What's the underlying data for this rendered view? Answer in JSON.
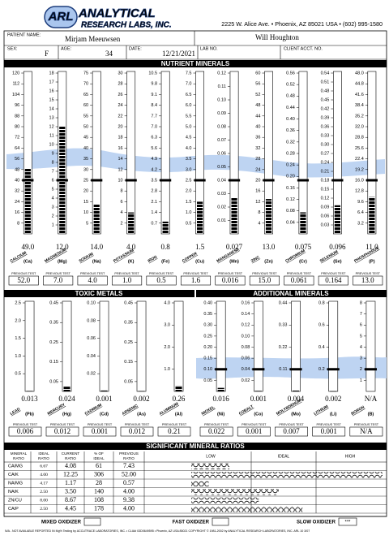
{
  "header": {
    "logo_mark": "ARL",
    "logo_line1": "ANALYTICAL",
    "logo_line2": "RESEARCH LABS, INC.",
    "address": "2225 W. Alice Ave. • Phoenix, AZ 85021 USA • (602) 995-1580"
  },
  "patient": {
    "name_label": "PATIENT NAME:",
    "name": "Mirjam Meeuwsen",
    "doctor": "Will Houghton",
    "sex_label": "SEX:",
    "sex": "F",
    "age_label": "AGE:",
    "age": "34",
    "date_label": "DATE:",
    "date": "12/21/2021",
    "lab_label": "LAB NO.",
    "acct_label": "CLIENT ACCT. NO."
  },
  "previous_test_label": "PREVIOUS TEST",
  "nutrient_minerals": {
    "title": "NUTRIENT MINERALS",
    "minerals": [
      {
        "name": "CALCIUM",
        "symbol": "(Ca)",
        "ylim": [
          0,
          120
        ],
        "ticks": [
          120,
          112,
          104,
          96,
          88,
          80,
          72,
          64,
          56,
          48,
          40,
          32,
          24,
          16,
          8
        ],
        "value": 49,
        "value_label": "49.0",
        "previous": "52.0"
      },
      {
        "name": "MAGNESIUM",
        "symbol": "(Mg)",
        "ylim": [
          0,
          18
        ],
        "ticks": [
          18,
          17,
          16,
          15,
          14,
          13,
          12,
          11,
          10,
          9,
          8,
          7,
          6,
          5,
          4,
          3,
          2,
          1
        ],
        "value": 12,
        "value_label": "12.0",
        "previous": "7.0"
      },
      {
        "name": "SODIUM",
        "symbol": "(Na)",
        "ylim": [
          0,
          75
        ],
        "ticks": [
          75,
          70,
          65,
          60,
          55,
          50,
          45,
          40,
          35,
          30,
          25,
          20,
          15,
          10,
          5
        ],
        "value": 14,
        "value_label": "14.0",
        "previous": "4.0"
      },
      {
        "name": "POTASSIUM",
        "symbol": "(K)",
        "ylim": [
          0,
          30
        ],
        "ticks": [
          30,
          28,
          26,
          24,
          22,
          20,
          18,
          16,
          14,
          12,
          10,
          8,
          6,
          4,
          2
        ],
        "value": 4,
        "value_label": "4.0",
        "previous": "1.0"
      },
      {
        "name": "IRON",
        "symbol": "(Fe)",
        "ylim": [
          0,
          10.5
        ],
        "ticks": [
          10.5,
          9.8,
          9.1,
          8.4,
          7.7,
          {
            "value": 7,
            "label": "7.0"
          },
          6.3,
          5.6,
          4.9,
          4.2,
          3.5,
          2.8,
          2.1,
          1.4,
          0.7
        ],
        "value": 0.8,
        "previous": "0.5"
      },
      {
        "name": "COPPER",
        "symbol": "(Cu)",
        "ylim": [
          0,
          7.5
        ],
        "ticks": [
          7.5,
          {
            "value": 7,
            "label": "7.0"
          },
          6.5,
          {
            "value": 6,
            "label": "6.0"
          },
          5.5,
          {
            "value": 5,
            "label": "5.0"
          },
          4.5,
          {
            "value": 4,
            "label": "4.0"
          },
          3.5,
          {
            "value": 3,
            "label": "3.0"
          },
          2.5,
          {
            "value": 2,
            "label": "2.0"
          },
          1.5,
          {
            "value": 1,
            "label": "1.0"
          },
          0.5
        ],
        "value": 1.5,
        "previous": "1.6"
      },
      {
        "name": "MANGANESE",
        "symbol": "(Mn)",
        "ylim": [
          0,
          0.12
        ],
        "ticks": [
          0.12,
          0.11,
          {
            "value": 0.1,
            "label": "0.10"
          },
          0.09,
          0.08,
          0.07,
          0.06,
          0.05,
          0.04,
          0.03,
          0.02,
          0.01
        ],
        "value": 0.027,
        "previous": "0.016"
      },
      {
        "name": "ZINC",
        "symbol": "(Zn)",
        "ylim": [
          0,
          60
        ],
        "ticks": [
          60,
          56,
          52,
          48,
          44,
          40,
          36,
          32,
          28,
          24,
          20,
          16,
          12,
          8,
          4
        ],
        "value": 13,
        "value_label": "13.0",
        "previous": "15.0"
      },
      {
        "name": "CHROMIUM",
        "symbol": "(Cr)",
        "ylim": [
          0,
          0.56
        ],
        "ticks": [
          0.56,
          0.52,
          0.48,
          0.44,
          {
            "value": 0.4,
            "label": "0.40"
          },
          0.36,
          0.32,
          0.28,
          0.24,
          {
            "value": 0.2,
            "label": "0.20"
          },
          0.16,
          0.12,
          0.08,
          0.04
        ],
        "value": 0.075,
        "previous": "0.061"
      },
      {
        "name": "SELENIUM",
        "symbol": "(Se)",
        "ylim": [
          0,
          0.54
        ],
        "ticks": [
          0.54,
          0.51,
          0.48,
          0.45,
          0.42,
          0.39,
          0.36,
          0.33,
          {
            "value": 0.3,
            "label": "0.30"
          },
          0.27,
          0.24,
          0.21,
          0.18,
          0.15,
          0.12,
          0.09,
          0.06,
          0.03
        ],
        "value": 0.096,
        "previous": "0.164"
      },
      {
        "name": "PHOSPHORUS",
        "symbol": "(P)",
        "ylim": [
          0,
          48
        ],
        "ticks": [
          {
            "value": 48,
            "label": "48.0"
          },
          44.8,
          41.6,
          38.4,
          35.2,
          {
            "value": 32,
            "label": "32.0"
          },
          28.8,
          25.6,
          22.4,
          19.2,
          {
            "value": 16,
            "label": "16.0"
          },
          12.8,
          9.6,
          6.4,
          3.2
        ],
        "value": 11,
        "value_label": "11.0",
        "previous": "13.0"
      }
    ]
  },
  "toxic_metals": {
    "title": "TOXIC METALS",
    "minerals": [
      {
        "name": "LEAD",
        "symbol": "(Pb)",
        "ylim": [
          0,
          2.5
        ],
        "ticks": [
          2.5,
          {
            "value": 2,
            "label": "2.0"
          },
          1.5,
          {
            "value": 1,
            "label": "1.0"
          },
          0.5
        ],
        "value": 0.013,
        "previous": "0.006"
      },
      {
        "name": "MERCURY",
        "symbol": "(Hg)",
        "ylim": [
          0,
          0.45
        ],
        "ticks": [
          0.45,
          0.35,
          0.25,
          0.15,
          0.05
        ],
        "value": 0.024,
        "previous": "0.012"
      },
      {
        "name": "CADMIUM",
        "symbol": "(Cd)",
        "ylim": [
          0,
          0.1
        ],
        "ticks": [
          {
            "value": 0.1,
            "label": "0.10"
          },
          0.08,
          0.06,
          0.04,
          0.02
        ],
        "value": 0.001,
        "previous": "0.001"
      },
      {
        "name": "ARSENIC",
        "symbol": "(As)",
        "ylim": [
          0,
          0.45
        ],
        "ticks": [
          0.45,
          0.35,
          0.25,
          0.15,
          0.05
        ],
        "value": 0.002,
        "previous": "0.012"
      },
      {
        "name": "ALUMINUM",
        "symbol": "(Al)",
        "ylim": [
          0,
          4
        ],
        "ticks": [
          {
            "value": 4,
            "label": "4.0"
          },
          {
            "value": 3,
            "label": "3.0"
          },
          {
            "value": 2,
            "label": "2.0"
          },
          {
            "value": 1,
            "label": "1.0"
          }
        ],
        "value": 0.26,
        "previous": "0.21"
      }
    ]
  },
  "additional_minerals": {
    "title": "ADDITIONAL MINERALS",
    "minerals": [
      {
        "name": "NICKEL",
        "symbol": "(Ni)",
        "ylim": [
          0,
          0.4
        ],
        "ticks": [
          {
            "value": 0.4,
            "label": "0.40"
          },
          0.35,
          {
            "value": 0.3,
            "label": "0.30"
          },
          0.25,
          {
            "value": 0.2,
            "label": "0.20"
          },
          0.15,
          {
            "value": 0.1,
            "label": "0.10"
          },
          0.05
        ],
        "value": 0.016,
        "previous": "0.022"
      },
      {
        "name": "COBALT",
        "symbol": "(Co)",
        "ylim": [
          0,
          0.16
        ],
        "ticks": [
          0.16,
          0.14,
          0.12,
          {
            "value": 0.1,
            "label": "0.10"
          },
          0.08,
          0.06,
          0.04,
          0.02
        ],
        "value": 0.001,
        "previous": "0.001"
      },
      {
        "name": "MOLYBDENUM",
        "symbol": "(Mo)",
        "ylim": [
          0,
          0.44
        ],
        "ticks": [
          0.44,
          0.33,
          0.22,
          0.11
        ],
        "value": 0.004,
        "previous": "0.007"
      },
      {
        "name": "LITHIUM",
        "symbol": "(Li)",
        "ylim": [
          0,
          0.8
        ],
        "ticks": [
          0.8,
          0.6,
          0.4,
          0.2
        ],
        "value": 0.002,
        "previous": "0.001"
      },
      {
        "name": "BORON",
        "symbol": "(B)",
        "ylim": [
          0,
          8
        ],
        "ticks": [
          8,
          7,
          6,
          5,
          4,
          3,
          2,
          1
        ],
        "value": null,
        "value_label": "N/A",
        "previous": "N/A"
      }
    ]
  },
  "ratios": {
    "title": "SIGNIFICANT MINERAL RATIOS",
    "headers": [
      [
        "MINERAL",
        "RATIO"
      ],
      [
        "IDEAL",
        "RATIO"
      ],
      [
        "CURRENT",
        "RATIO"
      ],
      [
        "% OF",
        "IDEAL"
      ],
      [
        "PREVIOUS",
        "RATIO"
      ]
    ],
    "scale_labels": [
      "LOW",
      "IDEAL",
      "HIGH"
    ],
    "rows": [
      {
        "ratio": "CA/MG",
        "ideal": "6.67",
        "current": "4.08",
        "percent_of_ideal": 61,
        "previous": "7.43"
      },
      {
        "ratio": "CA/K",
        "ideal": "4.00",
        "current": "12.25",
        "percent_of_ideal": 306,
        "previous": "52.00"
      },
      {
        "ratio": "NA/MG",
        "ideal": "4.17",
        "current": "1.17",
        "percent_of_ideal": 28,
        "previous": "0.57"
      },
      {
        "ratio": "NA/K",
        "ideal": "2.50",
        "current": "3.50",
        "percent_of_ideal": 140,
        "previous": "4.00"
      },
      {
        "ratio": "ZN/CU",
        "ideal": "8.00",
        "current": "8.67",
        "percent_of_ideal": 108,
        "previous": "9.38"
      },
      {
        "ratio": "CA/P",
        "ideal": "2.50",
        "current": "4.45",
        "percent_of_ideal": 178,
        "previous": "4.00"
      }
    ]
  },
  "oxidizer": {
    "mixed": "MIXED OXIDIZER",
    "fast": "FAST OXIDIZER",
    "slow": "SLOW OXIDIZER",
    "slow_mark": "***"
  },
  "footer": "N/A - NOT AVAILABLE   REPORTED IN Mg%   Testing by ACCUTRACE LABORATORIES, INC. • CLIA# 03D0649595 • Phoenix, AZ USA 85021   COPYRIGHT © 1981-2002 by ANALYTICAL RESEARCH LABORATORIES, INC.   ARL 10 3/07"
}
